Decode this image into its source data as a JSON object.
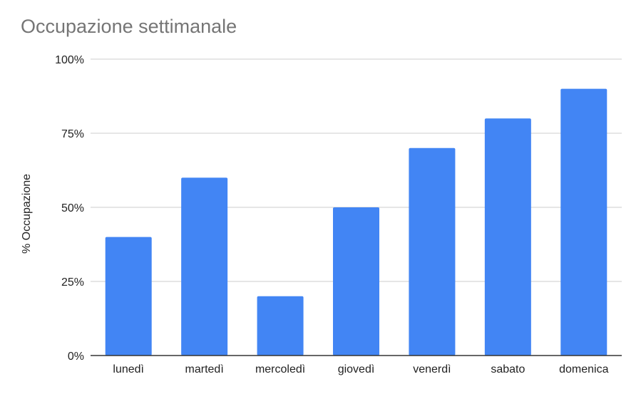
{
  "chart_data": {
    "type": "bar",
    "title": "Occupazione settimanale",
    "xlabel": "",
    "ylabel": "% Occupazione",
    "categories": [
      "lunedì",
      "martedì",
      "mercoledì",
      "giovedì",
      "venerdì",
      "sabato",
      "domenica"
    ],
    "values": [
      40,
      60,
      20,
      50,
      70,
      80,
      90
    ],
    "ylim": [
      0,
      100
    ],
    "yticks": [
      "0%",
      "25%",
      "50%",
      "75%",
      "100%"
    ],
    "ytick_values": [
      0,
      25,
      50,
      75,
      100
    ],
    "grid": true,
    "legend": "none",
    "bar_color": "#4285F4"
  }
}
